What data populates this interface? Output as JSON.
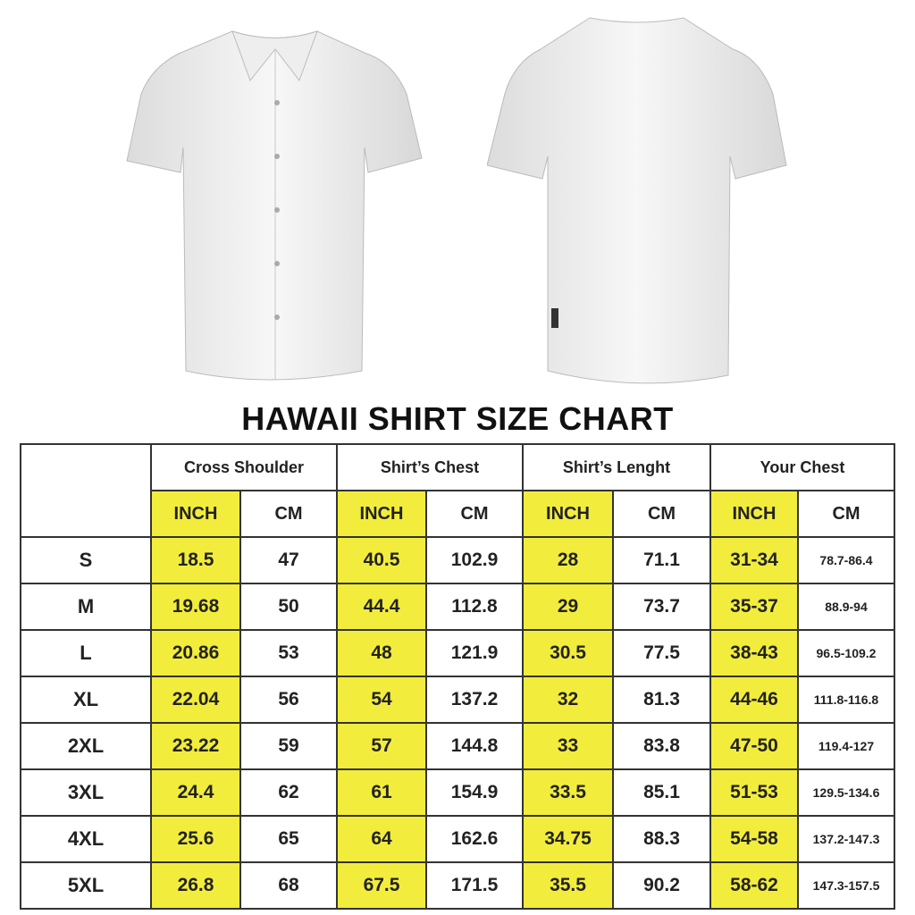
{
  "title": "HAWAII SHIRT SIZE CHART",
  "colors": {
    "highlight": "#f2ed3c",
    "border": "#333333"
  },
  "images": [
    "shirt-front",
    "shirt-back"
  ],
  "groups": [
    "Cross Shoulder",
    "Shirt’s Chest",
    "Shirt’s Lenght",
    "Your Chest"
  ],
  "units": {
    "inch": "INCH",
    "cm": "CM"
  },
  "rows": [
    {
      "size": "S",
      "cs_in": "18.5",
      "cs_cm": "47",
      "ch_in": "40.5",
      "ch_cm": "102.9",
      "len_in": "28",
      "len_cm": "71.1",
      "yc_in": "31-34",
      "yc_cm": "78.7-86.4"
    },
    {
      "size": "M",
      "cs_in": "19.68",
      "cs_cm": "50",
      "ch_in": "44.4",
      "ch_cm": "112.8",
      "len_in": "29",
      "len_cm": "73.7",
      "yc_in": "35-37",
      "yc_cm": "88.9-94"
    },
    {
      "size": "L",
      "cs_in": "20.86",
      "cs_cm": "53",
      "ch_in": "48",
      "ch_cm": "121.9",
      "len_in": "30.5",
      "len_cm": "77.5",
      "yc_in": "38-43",
      "yc_cm": "96.5-109.2"
    },
    {
      "size": "XL",
      "cs_in": "22.04",
      "cs_cm": "56",
      "ch_in": "54",
      "ch_cm": "137.2",
      "len_in": "32",
      "len_cm": "81.3",
      "yc_in": "44-46",
      "yc_cm": "111.8-116.8"
    },
    {
      "size": "2XL",
      "cs_in": "23.22",
      "cs_cm": "59",
      "ch_in": "57",
      "ch_cm": "144.8",
      "len_in": "33",
      "len_cm": "83.8",
      "yc_in": "47-50",
      "yc_cm": "119.4-127"
    },
    {
      "size": "3XL",
      "cs_in": "24.4",
      "cs_cm": "62",
      "ch_in": "61",
      "ch_cm": "154.9",
      "len_in": "33.5",
      "len_cm": "85.1",
      "yc_in": "51-53",
      "yc_cm": "129.5-134.6"
    },
    {
      "size": "4XL",
      "cs_in": "25.6",
      "cs_cm": "65",
      "ch_in": "64",
      "ch_cm": "162.6",
      "len_in": "34.75",
      "len_cm": "88.3",
      "yc_in": "54-58",
      "yc_cm": "137.2-147.3"
    },
    {
      "size": "5XL",
      "cs_in": "26.8",
      "cs_cm": "68",
      "ch_in": "67.5",
      "ch_cm": "171.5",
      "len_in": "35.5",
      "len_cm": "90.2",
      "yc_in": "58-62",
      "yc_cm": "147.3-157.5"
    }
  ]
}
